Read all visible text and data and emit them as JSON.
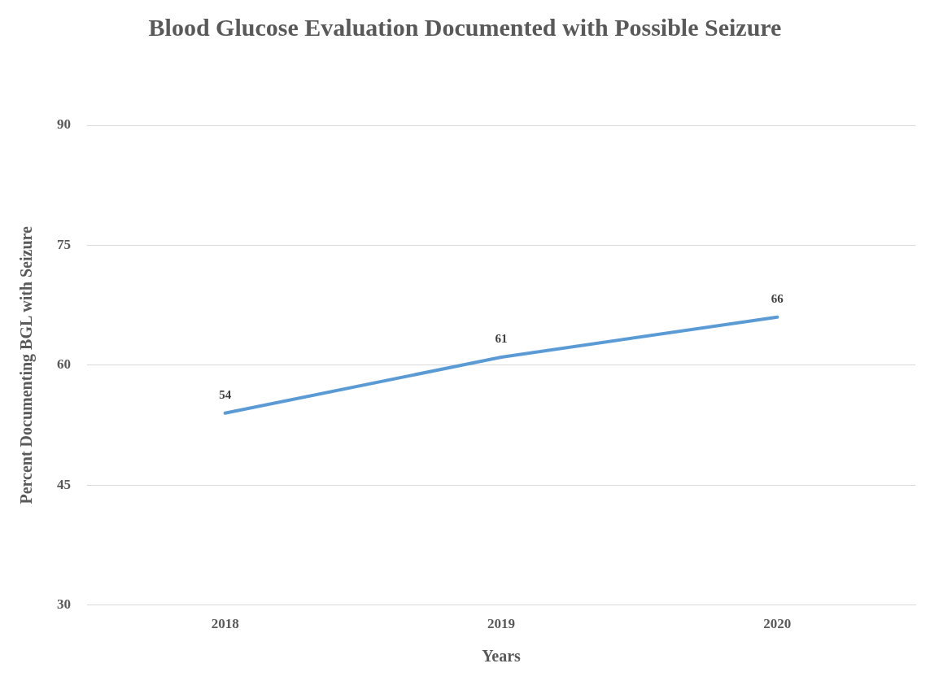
{
  "chart_data": {
    "type": "line",
    "title": "Blood Glucose Evaluation Documented with Possible Seizure",
    "xlabel": "Years",
    "ylabel": "Percent Documenting BGL with Seizure",
    "categories": [
      "2018",
      "2019",
      "2020"
    ],
    "series": [
      {
        "color": "#5b9bd5",
        "values": [
          54,
          61,
          66
        ]
      }
    ],
    "ylim": [
      30,
      90
    ],
    "yticks": [
      30,
      45,
      60,
      75,
      90
    ],
    "grid": "y",
    "legend": false,
    "marker": "none",
    "line_style": "solid",
    "data_labels": true
  }
}
